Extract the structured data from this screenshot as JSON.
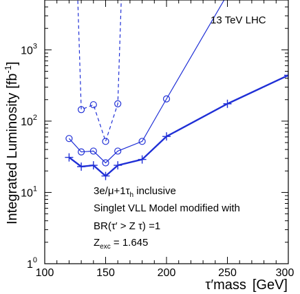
{
  "chart_data": {
    "type": "line",
    "xlabel_main": "τ′mass",
    "xlabel_unit": "[GeV]",
    "ylabel_main": "Integrated Luminosity",
    "ylabel_unit": "[fb",
    "ylabel_exp": "-1",
    "ylabel_close": "]",
    "xlim": [
      100,
      300
    ],
    "ylim": [
      1,
      5000
    ],
    "yscale": "log",
    "x_ticks": [
      "100",
      "150",
      "200",
      "250",
      "300"
    ],
    "y_ticks": [
      {
        "base": "1",
        "exp": "0",
        "value": 1
      },
      {
        "base": "10",
        "exp": "1",
        "value": 10
      },
      {
        "base": "10",
        "exp": "2",
        "value": 100
      },
      {
        "base": "10",
        "exp": "3",
        "value": 1000
      }
    ],
    "annotations": {
      "energy": "13 TeV LHC",
      "line1_a": "3e/μ+1τ",
      "line1_sub": "h",
      "line1_b": " inclusive",
      "line2": "Singlet VLL Model modified with",
      "line3": "BR(τ′ > Z τ) =1",
      "line4_a": "Z",
      "line4_sub": "exc",
      "line4_b": " = 1.645"
    },
    "series": [
      {
        "style": "dashed-circles",
        "color": "#1f2fd6",
        "points": [
          [
            127,
            6000
          ],
          [
            130,
            145
          ],
          [
            140,
            170
          ],
          [
            150,
            52
          ],
          [
            160,
            175
          ],
          [
            163,
            6000
          ]
        ]
      },
      {
        "style": "solid-circles",
        "color": "#1f2fd6",
        "points": [
          [
            120,
            57
          ],
          [
            130,
            37
          ],
          [
            140,
            38
          ],
          [
            150,
            26
          ],
          [
            160,
            38
          ],
          [
            180,
            52
          ],
          [
            200,
            205
          ],
          [
            250,
            6000
          ]
        ]
      },
      {
        "style": "thick-plus",
        "color": "#1f2fd6",
        "points": [
          [
            120,
            31
          ],
          [
            130,
            23
          ],
          [
            140,
            24
          ],
          [
            150,
            17
          ],
          [
            160,
            24
          ],
          [
            180,
            29
          ],
          [
            200,
            61
          ],
          [
            250,
            175
          ],
          [
            300,
            440
          ]
        ]
      }
    ]
  }
}
